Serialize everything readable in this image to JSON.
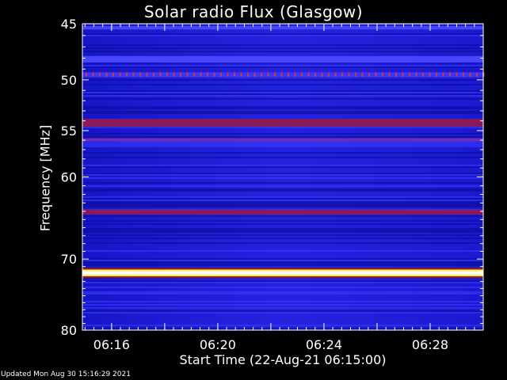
{
  "chart_data": {
    "type": "heatmap",
    "title": "Solar radio Flux (Glasgow)",
    "xlabel": "Start Time (22-Aug-21 06:15:00)",
    "ylabel": "Frequency [MHz]",
    "x_tick_labels": [
      "06:16",
      "06:20",
      "06:24",
      "06:28"
    ],
    "x_tick_minutes": [
      16,
      20,
      24,
      28
    ],
    "x_range_minutes": [
      14.9,
      30.0
    ],
    "y_ticks": [
      45,
      50,
      55,
      60,
      70,
      80
    ],
    "y_range": [
      45,
      80
    ],
    "y_scale": "log",
    "colormap": [
      "#00007a",
      "#1a1acf",
      "#3333ff",
      "#8a1460",
      "#ffff66",
      "#ffffff"
    ],
    "bands": [
      {
        "freq_low": 45.2,
        "freq_high": 45.5,
        "intensity": "medium"
      },
      {
        "freq_low": 47.8,
        "freq_high": 48.4,
        "intensity": "medium"
      },
      {
        "freq_low": 49.3,
        "freq_high": 49.7,
        "intensity": "dotted-high"
      },
      {
        "freq_low": 53.8,
        "freq_high": 54.6,
        "intensity": "high"
      },
      {
        "freq_low": 55.8,
        "freq_high": 56.1,
        "intensity": "medium-high"
      },
      {
        "freq_low": 63.8,
        "freq_high": 64.4,
        "intensity": "high"
      },
      {
        "freq_low": 71.5,
        "freq_high": 72.2,
        "intensity": "very-high"
      }
    ]
  },
  "footer": "Updated Mon Aug 30 15:16:29 2021"
}
